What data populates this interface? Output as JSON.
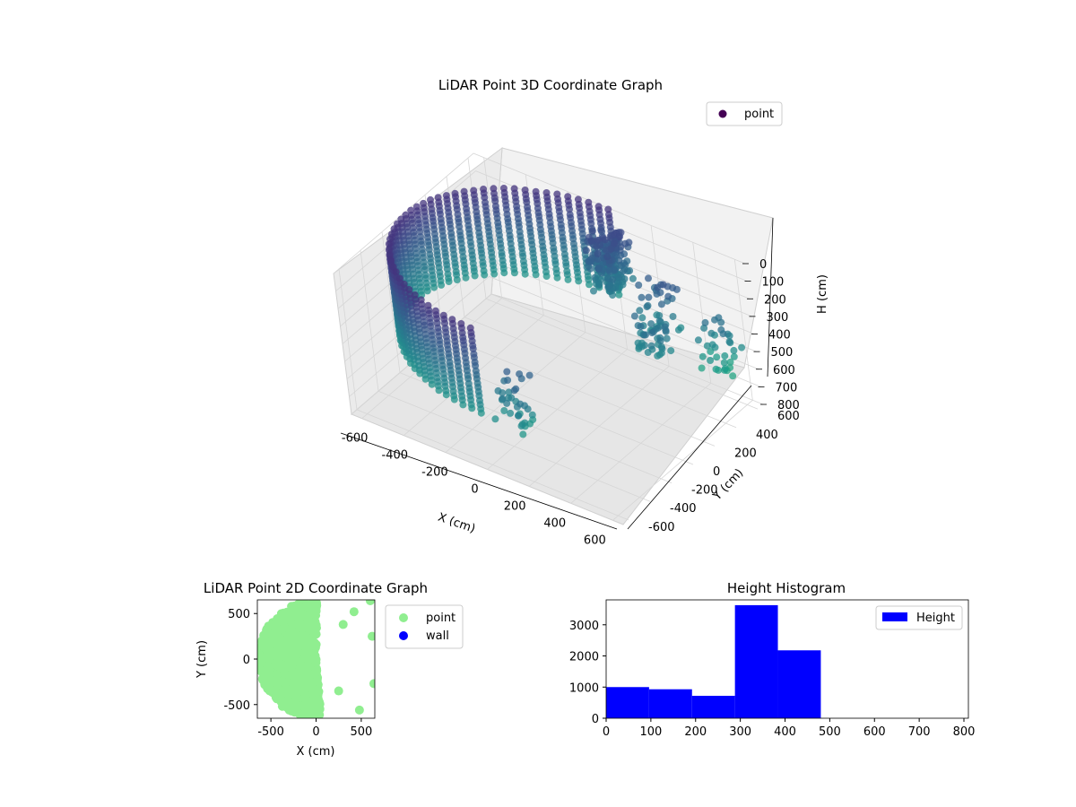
{
  "figure": {
    "panels": [
      "3d-scatter",
      "2d-scatter",
      "histogram"
    ]
  },
  "chart_data": [
    {
      "type": "scatter",
      "projection": "3d",
      "title": "LiDAR Point 3D Coordinate Graph",
      "xlabel": "X (cm)",
      "ylabel": "Y (cm)",
      "zlabel": "H (cm)",
      "xlim": [
        -650,
        650
      ],
      "ylim": [
        -650,
        650
      ],
      "zlim": [
        800,
        0
      ],
      "x_ticks": [
        "-600",
        "-400",
        "-200",
        "0",
        "200",
        "400",
        "600"
      ],
      "y_ticks": [
        "-600",
        "-400",
        "-200",
        "0",
        "200",
        "400",
        "600"
      ],
      "z_ticks": [
        "0",
        "100",
        "200",
        "300",
        "400",
        "500",
        "600",
        "700",
        "800"
      ],
      "z_inverted": true,
      "colormap": "viridis",
      "legend": {
        "placement": "upper-right",
        "entries": [
          {
            "name": "point",
            "color": "#440154"
          }
        ]
      },
      "description_of_points": "Half-cylindrical wall of points around x in [-650, 50], radius ~640, heights ~0-500, colored by height; scattered clusters toward +X",
      "series": [
        {
          "name": "point",
          "shape": "half-cylinder",
          "center": [
            0,
            0
          ],
          "radius": 640,
          "angle_range_deg": [
            90,
            270
          ],
          "height_range": [
            0,
            480
          ]
        },
        {
          "name": "point",
          "clusters": [
            {
              "x": 0,
              "y": 600,
              "h_range": [
                100,
                400
              ]
            },
            {
              "x": 300,
              "y": 450,
              "h_range": [
                150,
                450
              ]
            },
            {
              "x": 350,
              "y": 250,
              "h_range": [
                250,
                450
              ]
            },
            {
              "x": 150,
              "y": -600,
              "h_range": [
                200,
                500
              ]
            },
            {
              "x": 550,
              "y": 500,
              "h_range": [
                300,
                600
              ]
            }
          ]
        }
      ]
    },
    {
      "type": "scatter",
      "title": "LiDAR Point 2D Coordinate Graph",
      "xlabel": "X (cm)",
      "ylabel": "Y (cm)",
      "xlim": [
        -650,
        650
      ],
      "ylim": [
        -650,
        650
      ],
      "x_ticks": [
        "-500",
        "0",
        "500"
      ],
      "y_ticks": [
        "-500",
        "0",
        "500"
      ],
      "legend": {
        "placement": "outside-right",
        "entries": [
          {
            "name": "point",
            "color": "#90ee90"
          },
          {
            "name": "wall",
            "color": "#0000ff"
          }
        ]
      },
      "series": [
        {
          "name": "point",
          "color": "#90ee90",
          "shape": "filled half-disk",
          "radius": 640,
          "x_range": [
            -640,
            250
          ]
        },
        {
          "name": "point",
          "color": "#90ee90",
          "points": [
            [
              600,
              640
            ],
            [
              620,
              250
            ],
            [
              640,
              -270
            ],
            [
              480,
              -560
            ],
            [
              420,
              520
            ],
            [
              300,
              380
            ],
            [
              250,
              -350
            ]
          ]
        },
        {
          "name": "wall",
          "color": "#0000ff",
          "points": []
        }
      ]
    },
    {
      "type": "bar",
      "subtype": "histogram",
      "title": "Height Histogram",
      "xlim": [
        0,
        810
      ],
      "ylim": [
        0,
        3800
      ],
      "x_ticks": [
        "0",
        "100",
        "200",
        "300",
        "400",
        "500",
        "600",
        "700",
        "800"
      ],
      "y_ticks": [
        "0",
        "1000",
        "2000",
        "3000"
      ],
      "bin_edges": [
        0,
        96,
        192,
        288,
        384,
        480,
        576,
        672,
        768,
        864
      ],
      "values": [
        1000,
        930,
        720,
        3630,
        2180,
        0,
        0,
        0,
        0
      ],
      "color": "#0000ff",
      "legend": {
        "placement": "upper-right",
        "entries": [
          {
            "name": "Height",
            "color": "#0000ff"
          }
        ]
      }
    }
  ]
}
